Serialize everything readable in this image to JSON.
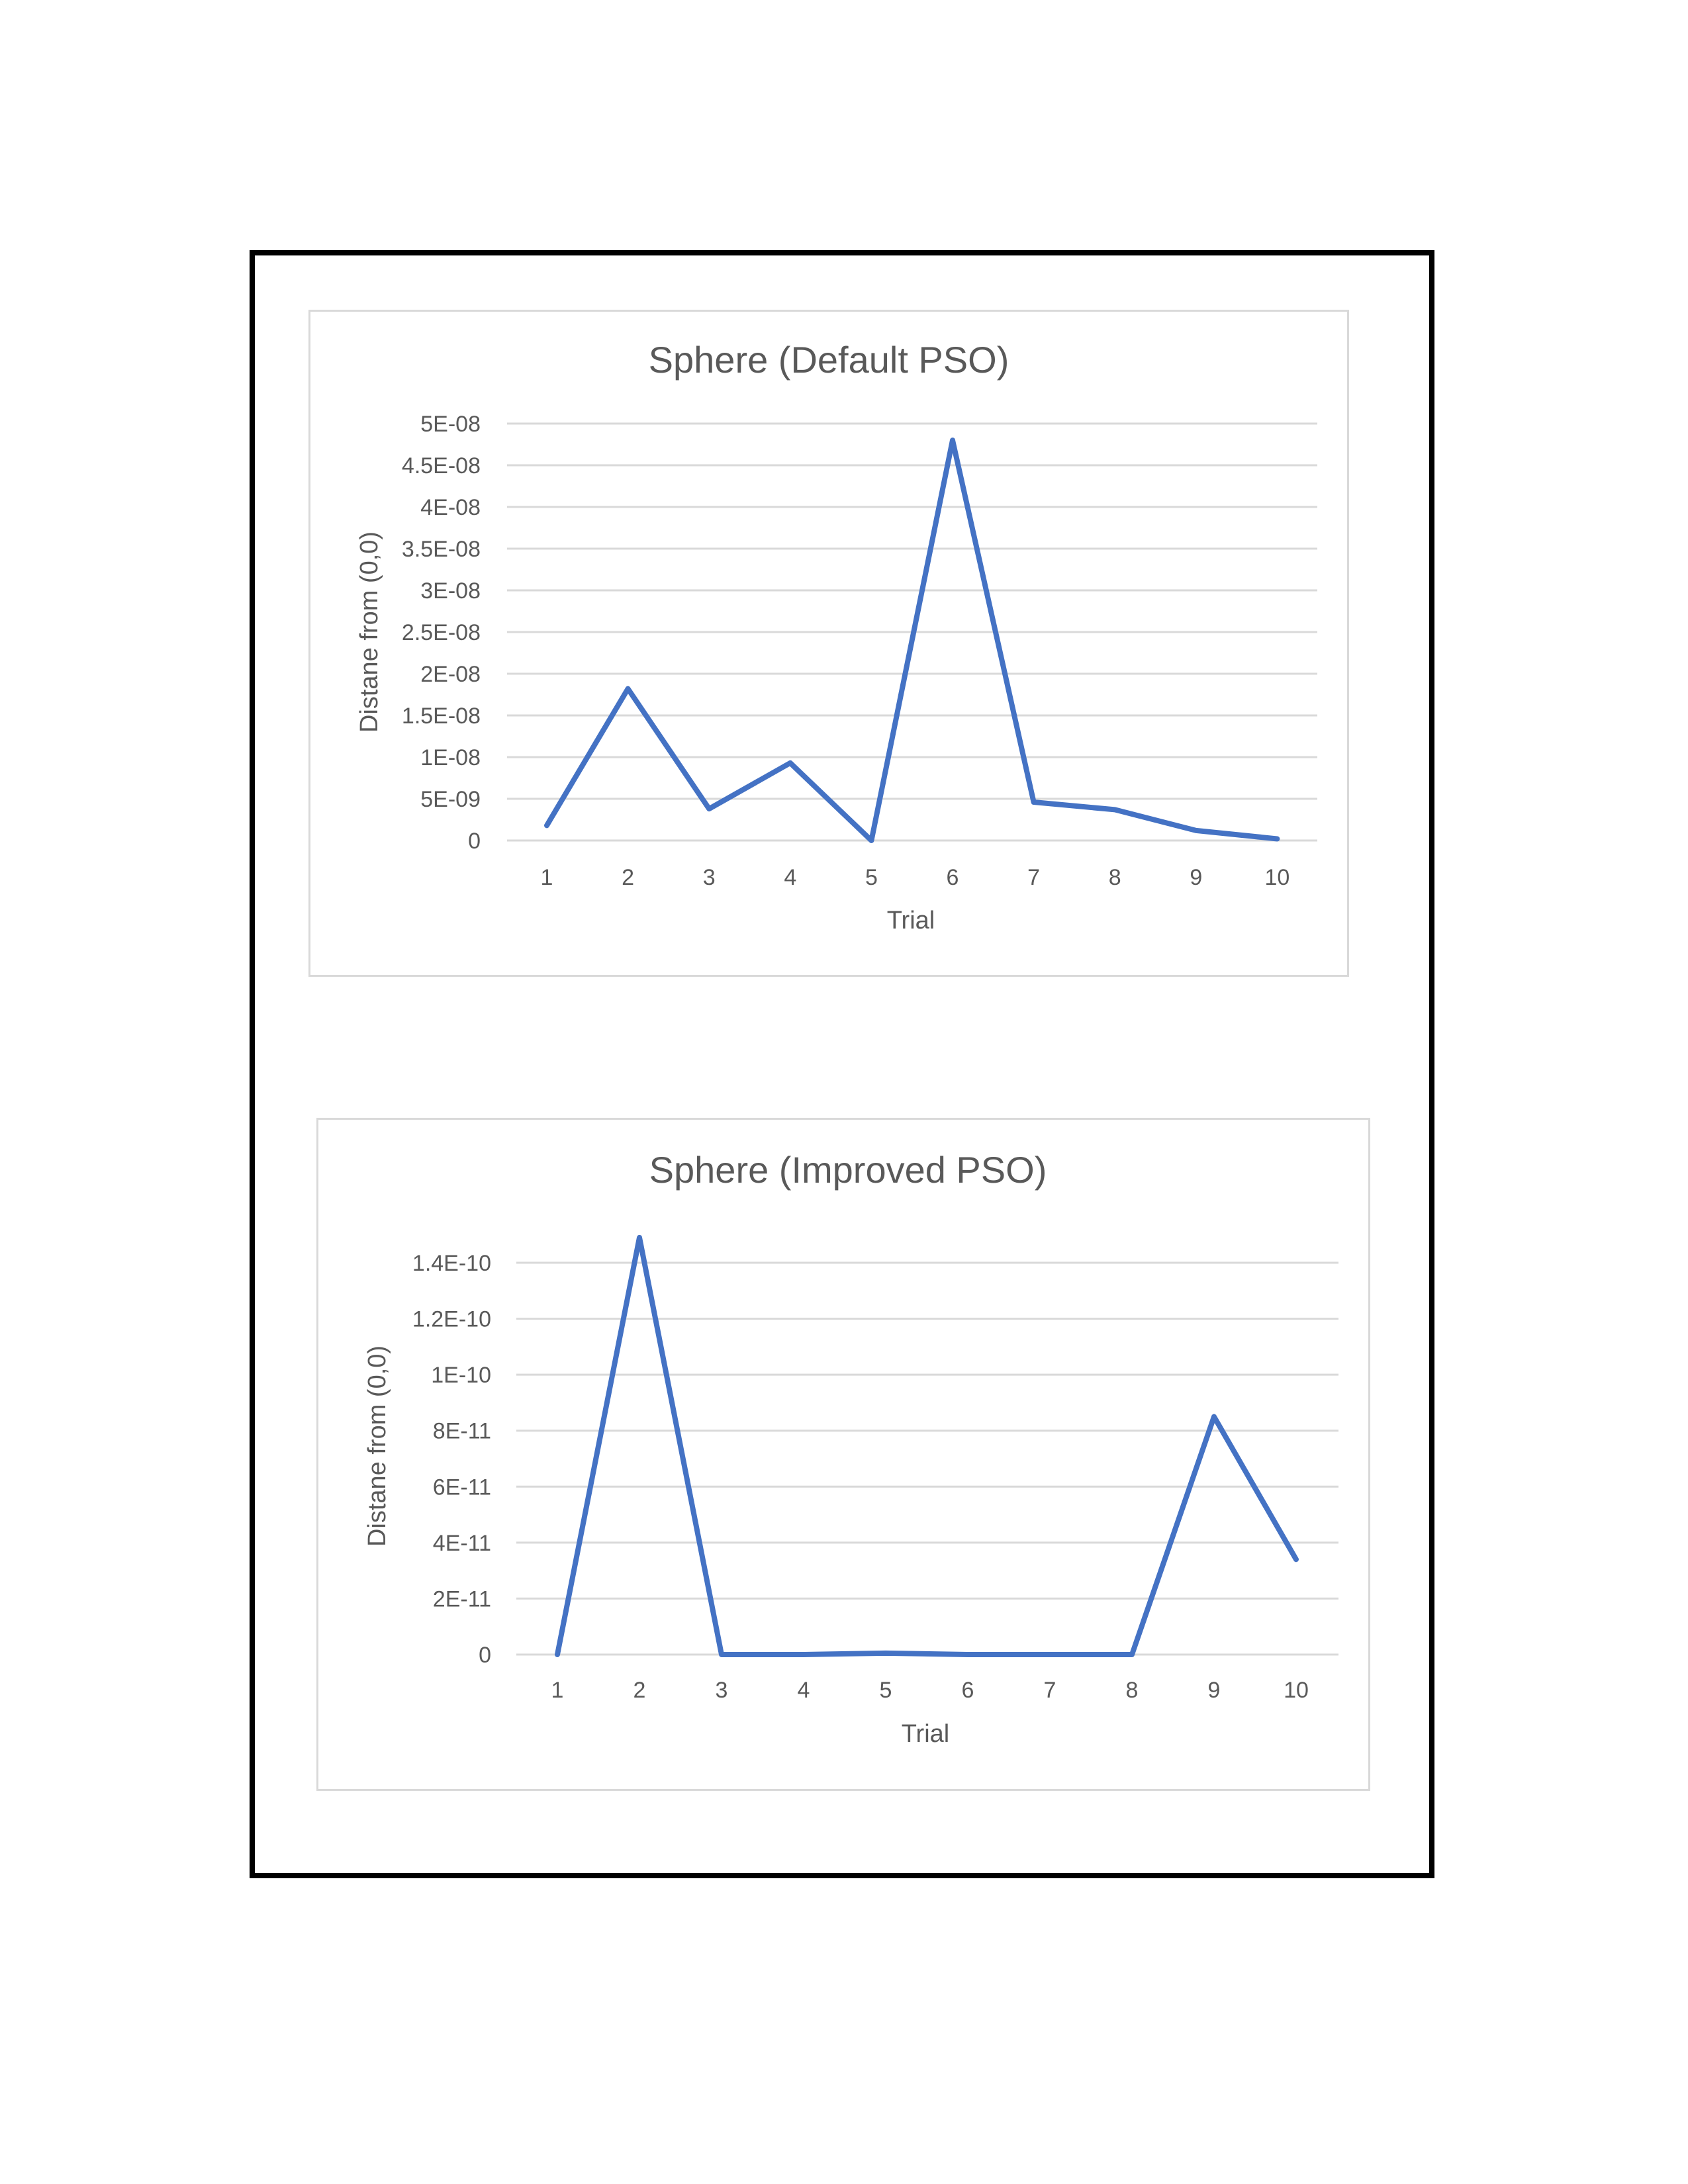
{
  "chart_data": [
    {
      "type": "line",
      "title": "Sphere (Default PSO)",
      "xlabel": "Trial",
      "ylabel": "Distane from (0,0)",
      "categories": [
        "1",
        "2",
        "3",
        "4",
        "5",
        "6",
        "7",
        "8",
        "9",
        "10"
      ],
      "series": [
        {
          "values": [
            1.8e-09,
            1.82e-08,
            3.8e-09,
            9.3e-09,
            0,
            4.8e-08,
            4.6e-09,
            3.7e-09,
            1.2e-09,
            2e-10
          ]
        }
      ],
      "ylim": [
        0,
        5e-08
      ],
      "yticks": [
        0,
        5e-09,
        1e-08,
        1.5e-08,
        2e-08,
        2.5e-08,
        3e-08,
        3.5e-08,
        4e-08,
        4.5e-08,
        5e-08
      ],
      "ytick_labels": [
        "0",
        "5E-09",
        "1E-08",
        "1.5E-08",
        "2E-08",
        "2.5E-08",
        "3E-08",
        "3.5E-08",
        "4E-08",
        "4.5E-08",
        "5E-08"
      ],
      "grid": true,
      "line_color": "#4472c4"
    },
    {
      "type": "line",
      "title": "Sphere (Improved PSO)",
      "xlabel": "Trial",
      "ylabel": "Distane from (0,0)",
      "categories": [
        "1",
        "2",
        "3",
        "4",
        "5",
        "6",
        "7",
        "8",
        "9",
        "10"
      ],
      "series": [
        {
          "values": [
            0,
            1.49e-10,
            0,
            0,
            5e-13,
            0,
            0,
            0,
            8.5e-11,
            3.4e-11
          ]
        }
      ],
      "ylim": [
        0,
        1.4e-10
      ],
      "yticks": [
        0,
        2e-11,
        4e-11,
        6e-11,
        8e-11,
        1e-10,
        1.2e-10,
        1.4e-10
      ],
      "ytick_labels": [
        "0",
        "2E-11",
        "4E-11",
        "6E-11",
        "8E-11",
        "1E-10",
        "1.2E-10",
        "1.4E-10"
      ],
      "grid": true,
      "line_color": "#4472c4"
    }
  ]
}
